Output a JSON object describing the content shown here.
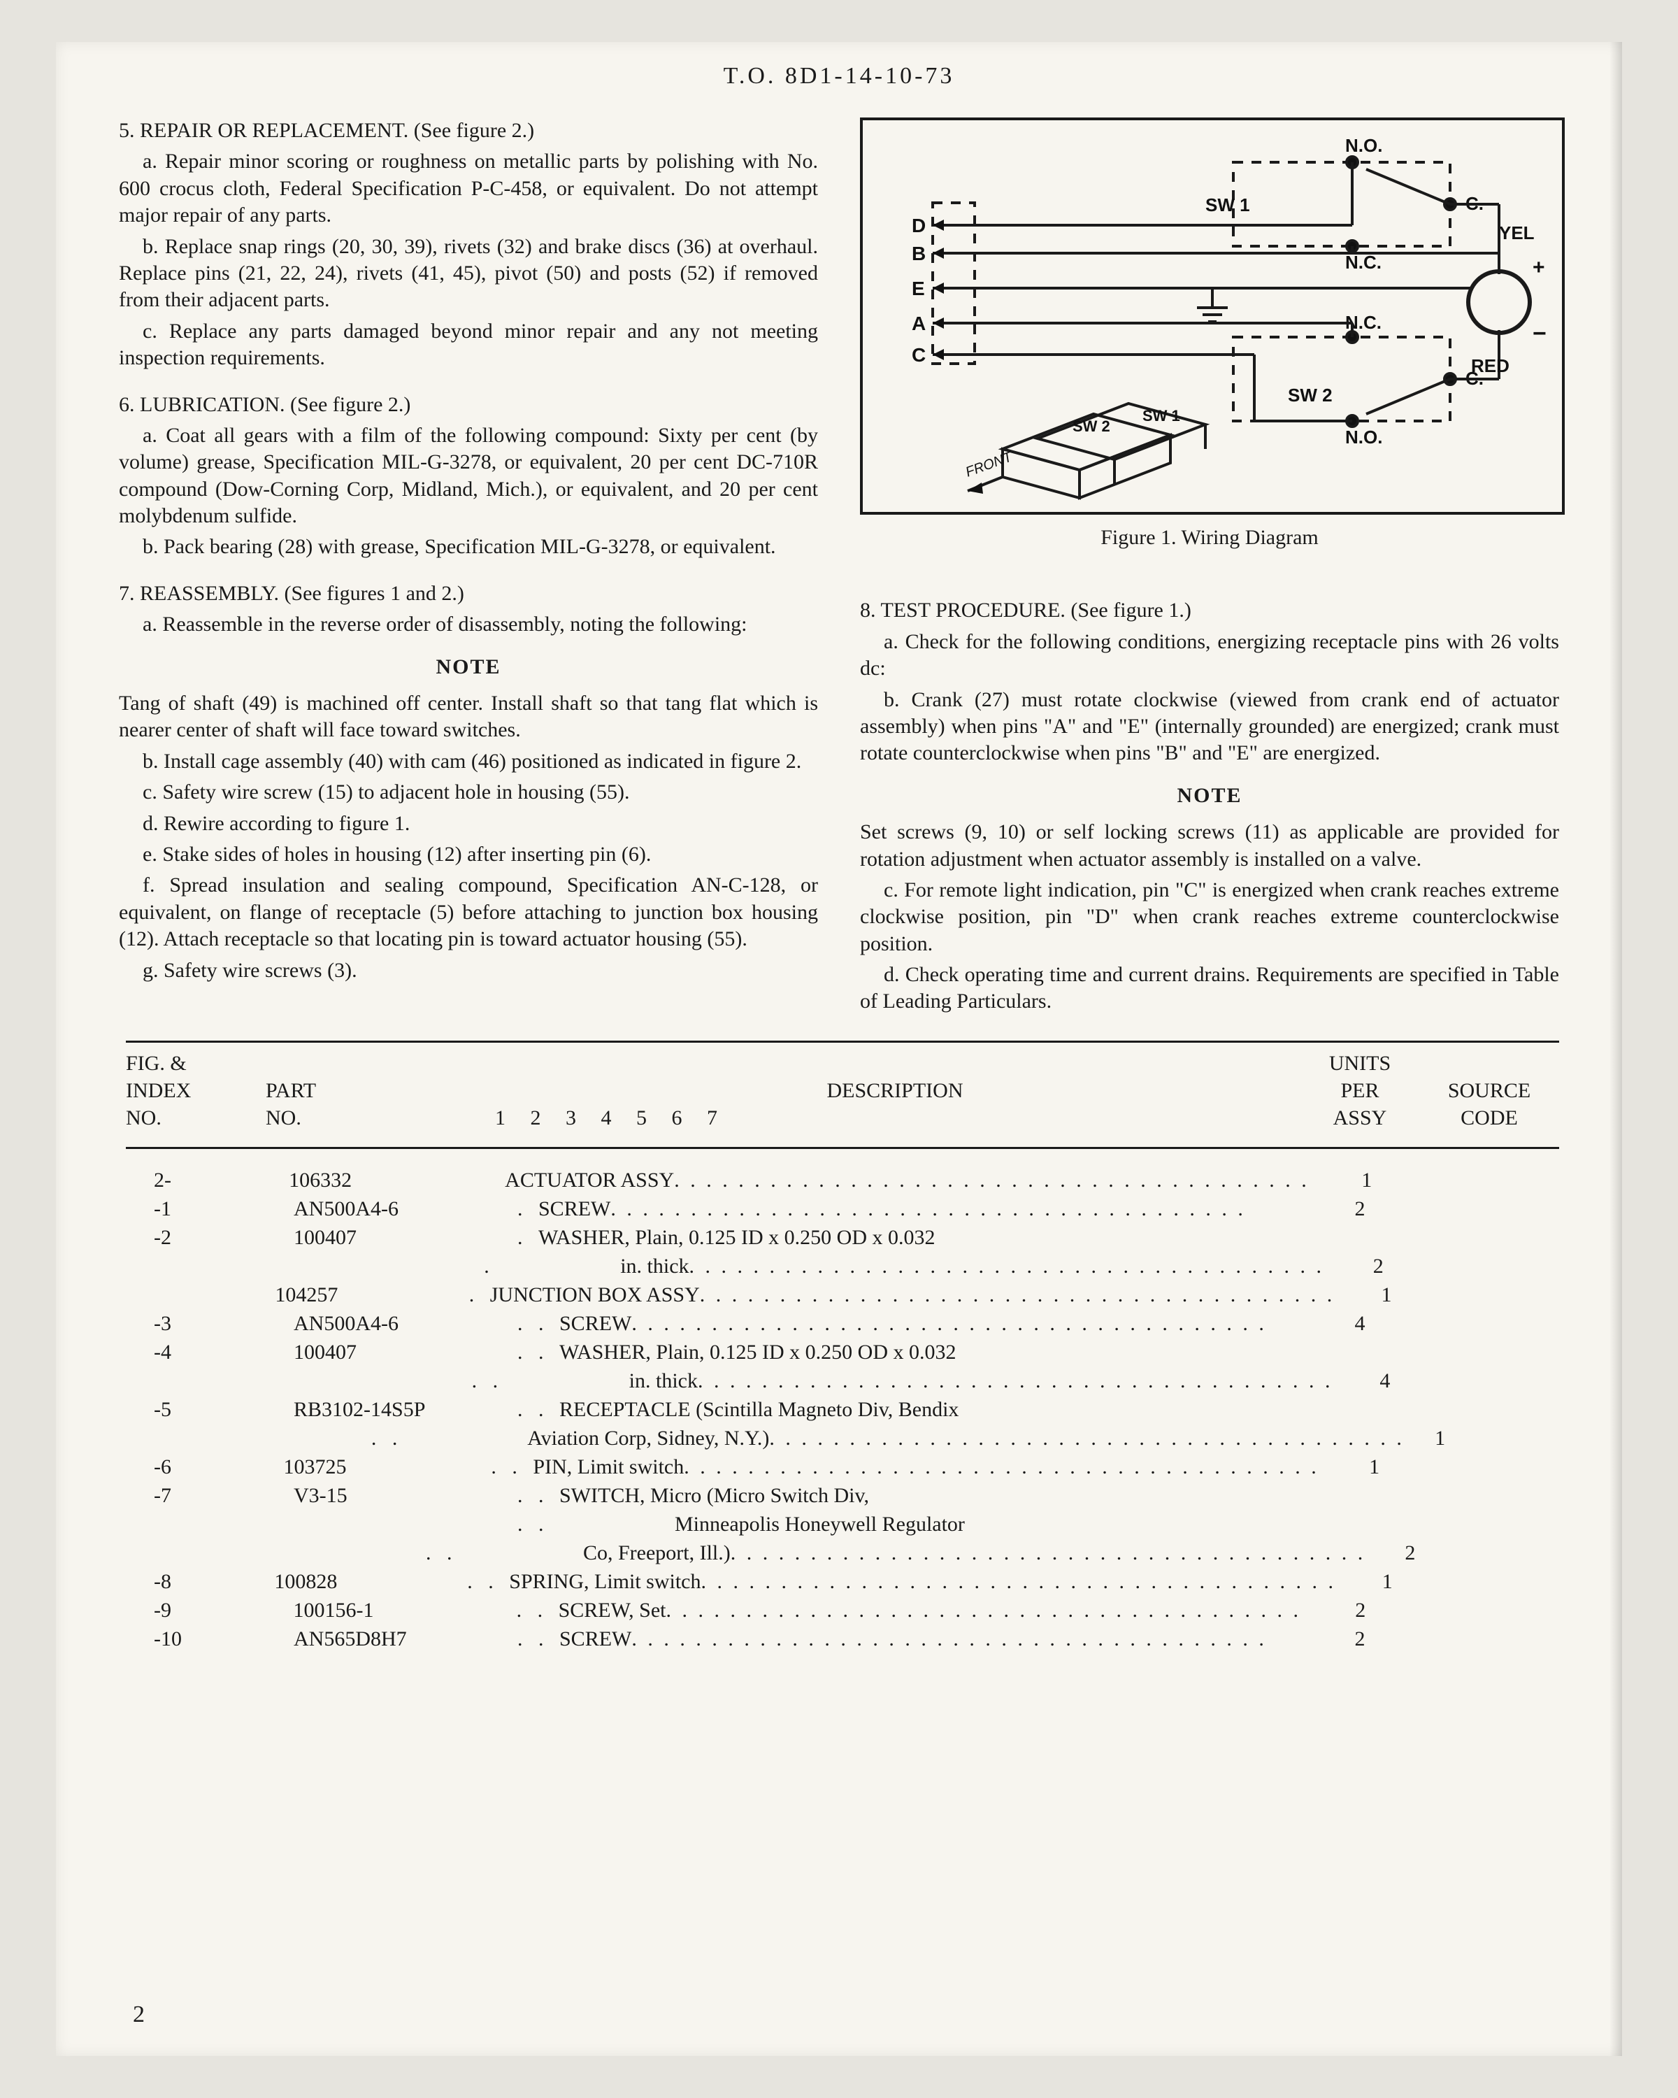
{
  "header": "T.O. 8D1-14-10-73",
  "page_number": "2",
  "note_label": "NOTE",
  "left": {
    "s5_title": "5.  REPAIR OR REPLACEMENT.  (See figure 2.)",
    "s5a": "a.  Repair minor scoring or roughness on metallic parts by polishing with No. 600 crocus cloth, Federal Specification P-C-458, or equivalent. Do not attempt major repair of any parts.",
    "s5b": "b.  Replace snap rings (20, 30, 39), rivets (32) and brake discs (36) at overhaul. Replace pins (21, 22, 24), rivets (41, 45), pivot (50) and posts (52) if removed from their adjacent parts.",
    "s5c": "c.  Replace any parts damaged beyond minor repair and any not meeting inspection requirements.",
    "s6_title": "6.  LUBRICATION.  (See figure 2.)",
    "s6a": "a.  Coat all gears with a film of the following compound: Sixty per cent (by volume) grease, Specification MIL-G-3278, or equivalent, 20 per cent DC-710R compound (Dow-Corning Corp, Midland, Mich.), or equivalent, and 20 per cent molybdenum sulfide.",
    "s6b": "b.  Pack bearing (28) with grease, Specification MIL-G-3278, or equivalent.",
    "s7_title": "7.  REASSEMBLY.  (See figures 1 and 2.)",
    "s7a": "a.  Reassemble in the reverse order of disassembly, noting the following:",
    "s7_note": "Tang of shaft (49) is machined off center. Install shaft so that tang flat which is nearer center of shaft will face toward switches.",
    "s7b": "b.  Install cage assembly (40) with cam (46) positioned as indicated in figure 2.",
    "s7c": "c.  Safety wire screw (15) to adjacent hole in housing (55).",
    "s7d": "d.  Rewire according to figure 1.",
    "s7e": "e.  Stake sides of holes in housing (12) after inserting pin (6).",
    "s7f": "f.  Spread insulation and sealing compound, Specification AN-C-128, or equivalent, on flange of receptacle (5) before attaching to junction box housing (12). Attach receptacle so that locating pin is toward actuator housing (55).",
    "s7g": "g.  Safety wire screws (3)."
  },
  "right": {
    "figcap": "Figure 1.  Wiring Diagram",
    "s8_title": "8.  TEST PROCEDURE.  (See figure 1.)",
    "s8a": "a.  Check for the following conditions, energizing receptacle pins with 26 volts dc:",
    "s8b": "b.  Crank (27) must rotate clockwise (viewed from crank end of actuator assembly) when pins \"A\" and \"E\" (internally grounded) are energized; crank must rotate counterclockwise when pins \"B\" and \"E\" are energized.",
    "s8_note": "Set screws (9, 10) or self locking screws (11) as applicable are provided for rotation adjustment when actuator assembly is installed on a valve.",
    "s8c": "c.  For remote light indication, pin \"C\" is energized when crank reaches extreme clockwise position, pin \"D\" when crank reaches extreme counterclockwise position.",
    "s8d": "d.  Check operating time and current drains. Requirements are specified in Table of Leading Particulars."
  },
  "diagram": {
    "D": "D",
    "B": "B",
    "E": "E",
    "A": "A",
    "C": "C",
    "SW1": "SW 1",
    "SW2": "SW 2",
    "NO": "N.O.",
    "NC": "N.C.",
    "Cdot": "C.",
    "YEL": "YEL",
    "RED": "RED",
    "PLUS": "+",
    "MINUS": "−",
    "FRONT": "FRONT"
  },
  "table": {
    "h_idx1": "FIG. &",
    "h_idx2": "INDEX",
    "h_idx3": "NO.",
    "h_part1": "PART",
    "h_part2": "NO.",
    "h_desc": "DESCRIPTION",
    "h_desc_nums": "1   2   3   4   5   6   7",
    "h_upa1": "UNITS",
    "h_upa2": "PER",
    "h_upa3": "ASSY",
    "h_src1": "SOURCE",
    "h_src2": "CODE",
    "rows": [
      {
        "idx": "2-",
        "part": "106332",
        "ind": "",
        "desc": "ACTUATOR ASSY",
        "dots": true,
        "upa": "1"
      },
      {
        "idx": "-1",
        "part": "AN500A4-6",
        "ind": ".   ",
        "desc": "SCREW",
        "dots": true,
        "upa": "2"
      },
      {
        "idx": "-2",
        "part": "100407",
        "ind": ".   ",
        "desc": "WASHER, Plain, 0.125 ID x 0.250 OD x 0.032",
        "dots": false,
        "upa": ""
      },
      {
        "idx": "",
        "part": "",
        "ind": ".   ",
        "desc": "                      in. thick",
        "dots": true,
        "upa": "2"
      },
      {
        "idx": "",
        "part": "104257",
        "ind": ".   ",
        "desc": "JUNCTION BOX ASSY",
        "dots": true,
        "upa": "1"
      },
      {
        "idx": "-3",
        "part": "AN500A4-6",
        "ind": ".   .   ",
        "desc": "SCREW",
        "dots": true,
        "upa": "4"
      },
      {
        "idx": "-4",
        "part": "100407",
        "ind": ".   .   ",
        "desc": "WASHER, Plain, 0.125 ID x 0.250 OD x 0.032",
        "dots": false,
        "upa": ""
      },
      {
        "idx": "",
        "part": "",
        "ind": ".   .   ",
        "desc": "                      in. thick",
        "dots": true,
        "upa": "4"
      },
      {
        "idx": "-5",
        "part": "RB3102-14S5P",
        "ind": ".   .   ",
        "desc": "RECEPTACLE (Scintilla Magneto Div, Bendix",
        "dots": false,
        "upa": ""
      },
      {
        "idx": "",
        "part": "",
        "ind": ".   .   ",
        "desc": "                      Aviation Corp, Sidney, N.Y.)",
        "dots": true,
        "upa": "1"
      },
      {
        "idx": "-6",
        "part": "103725",
        "ind": ".   .   ",
        "desc": "PIN, Limit switch",
        "dots": true,
        "upa": "1"
      },
      {
        "idx": "-7",
        "part": "V3-15",
        "ind": ".   .   ",
        "desc": "SWITCH, Micro (Micro Switch Div,",
        "dots": false,
        "upa": ""
      },
      {
        "idx": "",
        "part": "",
        "ind": ".   .   ",
        "desc": "                      Minneapolis Honeywell Regulator",
        "dots": false,
        "upa": ""
      },
      {
        "idx": "",
        "part": "",
        "ind": ".   .   ",
        "desc": "                      Co, Freeport, Ill.)",
        "dots": true,
        "upa": "2"
      },
      {
        "idx": "-8",
        "part": "100828",
        "ind": ".   .   ",
        "desc": "SPRING, Limit switch",
        "dots": true,
        "upa": "1"
      },
      {
        "idx": "-9",
        "part": "100156-1",
        "ind": ".   .   ",
        "desc": "SCREW, Set",
        "dots": true,
        "upa": "2"
      },
      {
        "idx": "-10",
        "part": "AN565D8H7",
        "ind": ".   .   ",
        "desc": "SCREW",
        "dots": true,
        "upa": "2"
      }
    ]
  }
}
